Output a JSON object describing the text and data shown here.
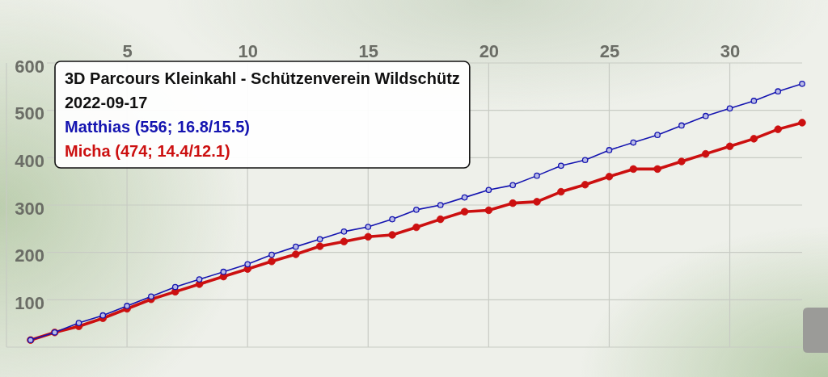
{
  "chart_data": {
    "type": "line",
    "title": "3D Parcours Kleinkahl - Schützenverein Wildschütz",
    "subtitle": "2022-09-17",
    "x": [
      1,
      2,
      3,
      4,
      5,
      6,
      7,
      8,
      9,
      10,
      11,
      12,
      13,
      14,
      15,
      16,
      17,
      18,
      19,
      20,
      21,
      22,
      23,
      24,
      25,
      26,
      27,
      28,
      29,
      30,
      31,
      32,
      33
    ],
    "series": [
      {
        "name": "Matthias (556; 16.8/15.5)",
        "color": "#1414b0",
        "values": [
          15,
          31,
          51,
          67,
          87,
          107,
          127,
          143,
          159,
          175,
          195,
          212,
          228,
          244,
          254,
          270,
          290,
          300,
          316,
          332,
          342,
          362,
          383,
          395,
          416,
          432,
          448,
          468,
          488,
          504,
          520,
          540,
          556
        ]
      },
      {
        "name": "Micha (474; 14.4/12.1)",
        "color": "#cc1010",
        "values": [
          15,
          31,
          44,
          61,
          81,
          101,
          117,
          133,
          149,
          165,
          181,
          196,
          213,
          223,
          233,
          237,
          253,
          270,
          286,
          289,
          304,
          307,
          328,
          343,
          360,
          376,
          376,
          392,
          408,
          424,
          440,
          460,
          474
        ]
      }
    ],
    "xlim": [
      0,
      33
    ],
    "ylim": [
      0,
      600
    ],
    "xticks": [
      5,
      10,
      15,
      20,
      25,
      30
    ],
    "yticks": [
      100,
      200,
      300,
      400,
      500,
      600
    ],
    "grid": true,
    "legend": "top left",
    "marker": "circle"
  }
}
